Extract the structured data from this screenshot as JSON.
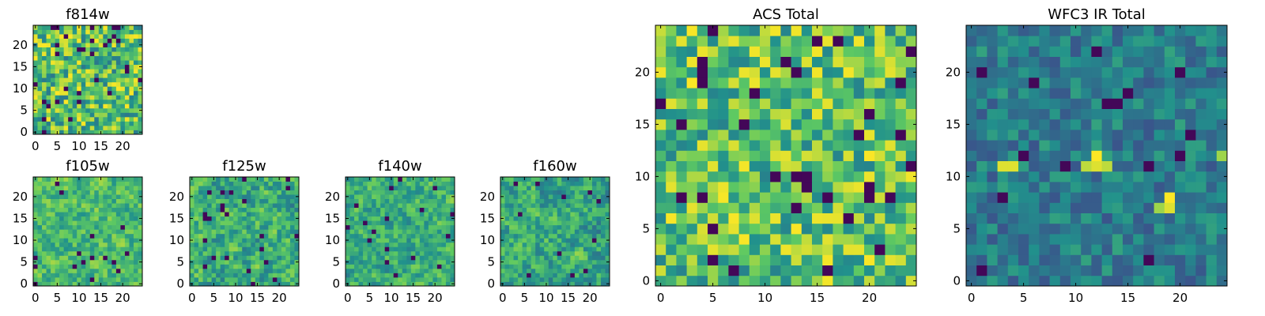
{
  "chart_data": [
    {
      "type": "heatmap",
      "title": "f814w",
      "xlabel": "",
      "ylabel": "",
      "xlim": [
        -0.5,
        24.5
      ],
      "ylim": [
        -0.5,
        24.5
      ],
      "xticks": [
        0,
        5,
        10,
        15,
        20
      ],
      "yticks": [
        0,
        5,
        10,
        15,
        20
      ],
      "grid_size": [
        25,
        25
      ],
      "colormap": "viridis",
      "colormap_stops": [
        "#440154",
        "#3b528b",
        "#21918c",
        "#5ec962",
        "#fde725"
      ],
      "pattern": {
        "seed": 11,
        "base": 0.7,
        "noise": 0.3,
        "smooth": 0,
        "low_fraction": 0.05,
        "bright_spots": []
      }
    },
    {
      "type": "heatmap",
      "title": "f105w",
      "xlabel": "",
      "ylabel": "",
      "xlim": [
        -0.5,
        24.5
      ],
      "ylim": [
        -0.5,
        24.5
      ],
      "xticks": [
        0,
        5,
        10,
        15,
        20
      ],
      "yticks": [
        0,
        5,
        10,
        15,
        20
      ],
      "grid_size": [
        25,
        25
      ],
      "colormap": "viridis",
      "colormap_stops": [
        "#440154",
        "#3b528b",
        "#21918c",
        "#5ec962",
        "#fde725"
      ],
      "pattern": {
        "seed": 23,
        "base": 0.68,
        "noise": 0.28,
        "smooth": 1,
        "low_fraction": 0.02,
        "bright_spots": []
      }
    },
    {
      "type": "heatmap",
      "title": "f125w",
      "xlabel": "",
      "ylabel": "",
      "xlim": [
        -0.5,
        24.5
      ],
      "ylim": [
        -0.5,
        24.5
      ],
      "xticks": [
        0,
        5,
        10,
        15,
        20
      ],
      "yticks": [
        0,
        5,
        10,
        15,
        20
      ],
      "grid_size": [
        25,
        25
      ],
      "colormap": "viridis",
      "colormap_stops": [
        "#440154",
        "#3b528b",
        "#21918c",
        "#5ec962",
        "#fde725"
      ],
      "pattern": {
        "seed": 37,
        "base": 0.62,
        "noise": 0.32,
        "smooth": 1,
        "low_fraction": 0.04,
        "bright_spots": []
      }
    },
    {
      "type": "heatmap",
      "title": "f140w",
      "xlabel": "",
      "ylabel": "",
      "xlim": [
        -0.5,
        24.5
      ],
      "ylim": [
        -0.5,
        24.5
      ],
      "xticks": [
        0,
        5,
        10,
        15,
        20
      ],
      "yticks": [
        0,
        5,
        10,
        15,
        20
      ],
      "grid_size": [
        25,
        25
      ],
      "colormap": "viridis",
      "colormap_stops": [
        "#440154",
        "#3b528b",
        "#21918c",
        "#5ec962",
        "#fde725"
      ],
      "pattern": {
        "seed": 41,
        "base": 0.62,
        "noise": 0.28,
        "smooth": 1,
        "low_fraction": 0.02,
        "bright_spots": []
      }
    },
    {
      "type": "heatmap",
      "title": "f160w",
      "xlabel": "",
      "ylabel": "",
      "xlim": [
        -0.5,
        24.5
      ],
      "ylim": [
        -0.5,
        24.5
      ],
      "xticks": [
        0,
        5,
        10,
        15,
        20
      ],
      "yticks": [
        0,
        5,
        10,
        15,
        20
      ],
      "grid_size": [
        25,
        25
      ],
      "colormap": "viridis",
      "colormap_stops": [
        "#440154",
        "#3b528b",
        "#21918c",
        "#5ec962",
        "#fde725"
      ],
      "pattern": {
        "seed": 53,
        "base": 0.6,
        "noise": 0.3,
        "smooth": 1,
        "low_fraction": 0.02,
        "bright_spots": []
      }
    },
    {
      "type": "heatmap",
      "title": "ACS Total",
      "xlabel": "",
      "ylabel": "",
      "xlim": [
        -0.5,
        24.5
      ],
      "ylim": [
        -0.5,
        24.5
      ],
      "xticks": [
        0,
        5,
        10,
        15,
        20
      ],
      "yticks": [
        0,
        5,
        10,
        15,
        20
      ],
      "grid_size": [
        25,
        25
      ],
      "colormap": "viridis",
      "colormap_stops": [
        "#440154",
        "#3b528b",
        "#21918c",
        "#5ec962",
        "#fde725"
      ],
      "pattern": {
        "seed": 67,
        "base": 0.72,
        "noise": 0.28,
        "smooth": 0,
        "low_fraction": 0.04,
        "bright_spots": []
      }
    },
    {
      "type": "heatmap",
      "title": "WFC3 IR Total",
      "xlabel": "",
      "ylabel": "",
      "xlim": [
        -0.5,
        24.5
      ],
      "ylim": [
        -0.5,
        24.5
      ],
      "xticks": [
        0,
        5,
        10,
        15,
        20
      ],
      "yticks": [
        0,
        5,
        10,
        15,
        20
      ],
      "grid_size": [
        25,
        25
      ],
      "colormap": "viridis",
      "colormap_stops": [
        "#440154",
        "#3b528b",
        "#21918c",
        "#5ec962",
        "#fde725"
      ],
      "pattern": {
        "seed": 79,
        "base": 0.42,
        "noise": 0.16,
        "smooth": 0,
        "low_fraction": 0.03,
        "bright_spots": [
          [
            12,
            12,
            1.0
          ],
          [
            12,
            11,
            0.95
          ],
          [
            11,
            11,
            0.9
          ],
          [
            13,
            11,
            0.9
          ],
          [
            3,
            11,
            0.95
          ],
          [
            4,
            11,
            0.95
          ],
          [
            19,
            8,
            1.0
          ],
          [
            19,
            7,
            0.95
          ],
          [
            18,
            7,
            0.85
          ],
          [
            24,
            12,
            0.85
          ]
        ]
      }
    }
  ]
}
